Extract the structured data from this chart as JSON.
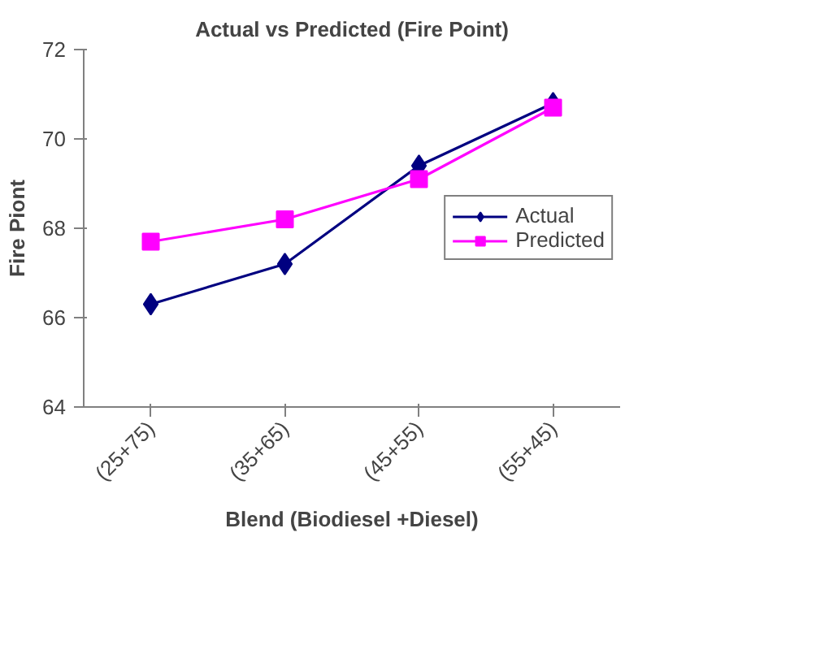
{
  "chart_data": {
    "type": "line",
    "title": "Actual vs Predicted (Fire Point)",
    "xlabel": "Blend (Biodiesel +Diesel)",
    "ylabel": "Fire Piont",
    "categories": [
      "(25+75)",
      "(35+65)",
      "(45+55)",
      "(55+45)"
    ],
    "series": [
      {
        "name": "Actual",
        "color": "#000080",
        "marker": "diamond",
        "values": [
          66.3,
          67.2,
          69.4,
          70.8
        ]
      },
      {
        "name": "Predicted",
        "color": "#ff00ff",
        "marker": "square",
        "values": [
          67.7,
          68.2,
          69.1,
          70.7
        ]
      }
    ],
    "ylim": [
      64,
      72
    ],
    "yticks": [
      64,
      66,
      68,
      70,
      72
    ],
    "legend": "right"
  }
}
